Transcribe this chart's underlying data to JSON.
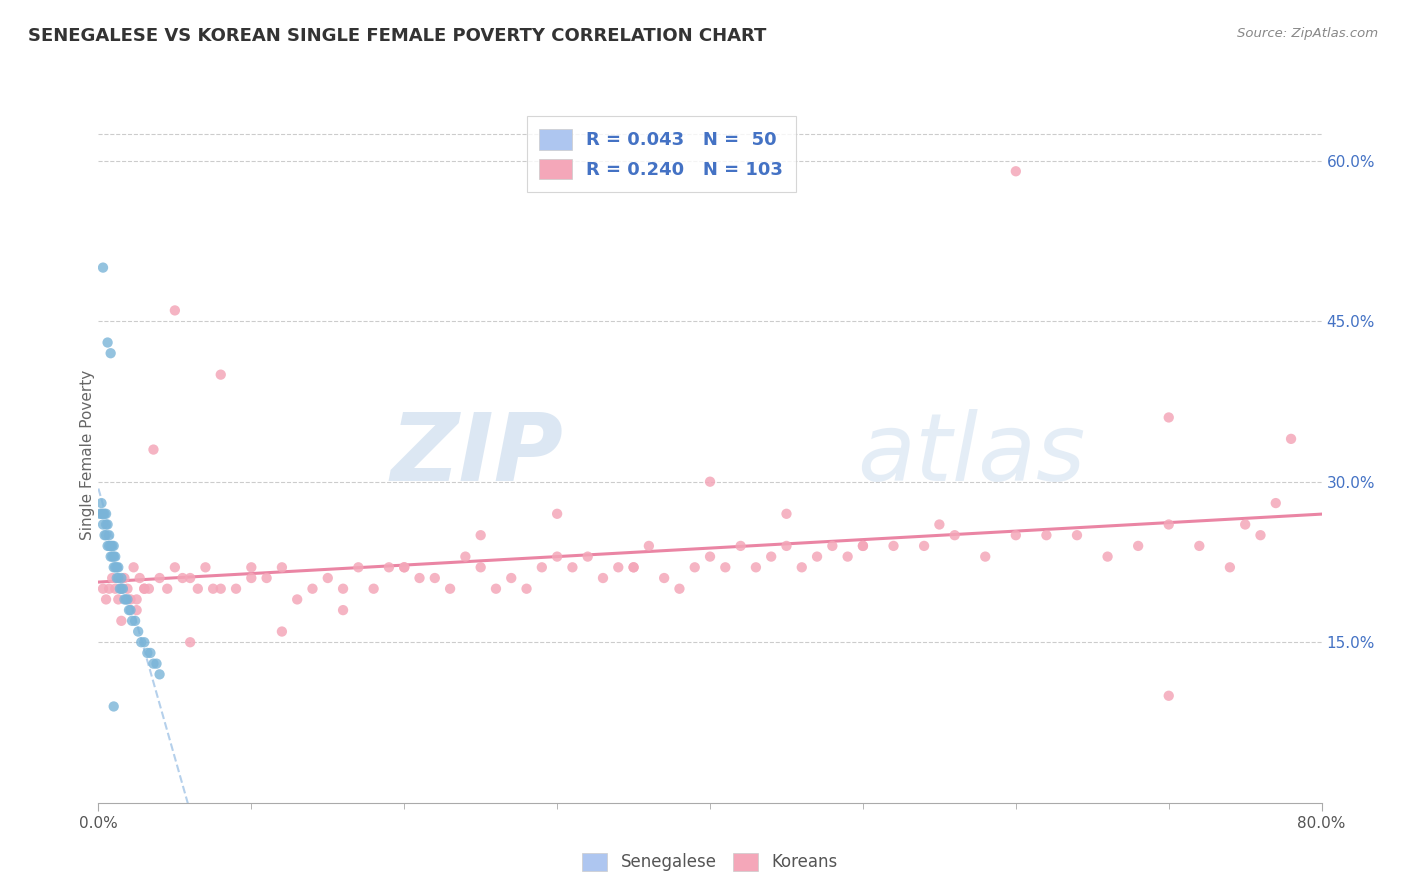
{
  "title": "SENEGALESE VS KOREAN SINGLE FEMALE POVERTY CORRELATION CHART",
  "source_text": "Source: ZipAtlas.com",
  "ylabel": "Single Female Poverty",
  "ytick_labels_right": [
    "15.0%",
    "30.0%",
    "45.0%",
    "60.0%"
  ],
  "ytick_values_right": [
    0.15,
    0.3,
    0.45,
    0.6
  ],
  "xlim": [
    0.0,
    0.8
  ],
  "ylim": [
    0.0,
    0.65
  ],
  "legend_entries": [
    {
      "label": "R = 0.043   N =  50",
      "color": "#aec6f0"
    },
    {
      "label": "R = 0.240   N = 103",
      "color": "#f4a7b9"
    }
  ],
  "bottom_legend": [
    "Senegalese",
    "Koreans"
  ],
  "watermark_zip": "ZIP",
  "watermark_atlas": "atlas",
  "senegalese_color": "#7ab4d8",
  "korean_color": "#f4a7b9",
  "senegalese_line_color": "#a8c8e8",
  "korean_line_color": "#e8789a",
  "background_color": "#ffffff",
  "title_color": "#333333",
  "axis_label_color": "#666666",
  "legend_text_color": "#4472c4",
  "senegalese_scatter_x": [
    0.001,
    0.002,
    0.002,
    0.003,
    0.003,
    0.004,
    0.004,
    0.005,
    0.005,
    0.005,
    0.006,
    0.006,
    0.007,
    0.007,
    0.008,
    0.008,
    0.009,
    0.009,
    0.01,
    0.01,
    0.01,
    0.011,
    0.011,
    0.012,
    0.012,
    0.013,
    0.013,
    0.014,
    0.015,
    0.015,
    0.016,
    0.017,
    0.018,
    0.019,
    0.02,
    0.021,
    0.022,
    0.024,
    0.026,
    0.028,
    0.03,
    0.032,
    0.034,
    0.036,
    0.038,
    0.04,
    0.003,
    0.006,
    0.008,
    0.01
  ],
  "senegalese_scatter_y": [
    0.27,
    0.27,
    0.28,
    0.27,
    0.26,
    0.27,
    0.25,
    0.26,
    0.25,
    0.27,
    0.24,
    0.26,
    0.24,
    0.25,
    0.24,
    0.23,
    0.23,
    0.24,
    0.22,
    0.23,
    0.24,
    0.22,
    0.23,
    0.21,
    0.22,
    0.21,
    0.22,
    0.2,
    0.2,
    0.21,
    0.2,
    0.19,
    0.19,
    0.19,
    0.18,
    0.18,
    0.17,
    0.17,
    0.16,
    0.15,
    0.15,
    0.14,
    0.14,
    0.13,
    0.13,
    0.12,
    0.5,
    0.43,
    0.42,
    0.09
  ],
  "korean_scatter_x": [
    0.003,
    0.005,
    0.007,
    0.009,
    0.011,
    0.013,
    0.015,
    0.017,
    0.019,
    0.021,
    0.023,
    0.025,
    0.027,
    0.03,
    0.033,
    0.036,
    0.04,
    0.045,
    0.05,
    0.055,
    0.06,
    0.065,
    0.07,
    0.075,
    0.08,
    0.09,
    0.1,
    0.11,
    0.12,
    0.13,
    0.14,
    0.15,
    0.16,
    0.17,
    0.18,
    0.19,
    0.2,
    0.21,
    0.22,
    0.23,
    0.24,
    0.25,
    0.26,
    0.27,
    0.28,
    0.29,
    0.3,
    0.31,
    0.32,
    0.33,
    0.34,
    0.35,
    0.36,
    0.37,
    0.38,
    0.39,
    0.4,
    0.41,
    0.42,
    0.43,
    0.44,
    0.45,
    0.46,
    0.47,
    0.48,
    0.49,
    0.5,
    0.52,
    0.54,
    0.56,
    0.58,
    0.6,
    0.62,
    0.64,
    0.66,
    0.68,
    0.7,
    0.72,
    0.74,
    0.76,
    0.015,
    0.03,
    0.05,
    0.08,
    0.12,
    0.2,
    0.3,
    0.4,
    0.5,
    0.6,
    0.7,
    0.025,
    0.06,
    0.1,
    0.16,
    0.25,
    0.35,
    0.45,
    0.55,
    0.7,
    0.75,
    0.77,
    0.78
  ],
  "korean_scatter_y": [
    0.2,
    0.19,
    0.2,
    0.21,
    0.2,
    0.19,
    0.2,
    0.21,
    0.2,
    0.19,
    0.22,
    0.19,
    0.21,
    0.2,
    0.2,
    0.33,
    0.21,
    0.2,
    0.22,
    0.21,
    0.21,
    0.2,
    0.22,
    0.2,
    0.2,
    0.2,
    0.22,
    0.21,
    0.22,
    0.19,
    0.2,
    0.21,
    0.2,
    0.22,
    0.2,
    0.22,
    0.22,
    0.21,
    0.21,
    0.2,
    0.23,
    0.22,
    0.2,
    0.21,
    0.2,
    0.22,
    0.23,
    0.22,
    0.23,
    0.21,
    0.22,
    0.22,
    0.24,
    0.21,
    0.2,
    0.22,
    0.23,
    0.22,
    0.24,
    0.22,
    0.23,
    0.24,
    0.22,
    0.23,
    0.24,
    0.23,
    0.24,
    0.24,
    0.24,
    0.25,
    0.23,
    0.25,
    0.25,
    0.25,
    0.23,
    0.24,
    0.26,
    0.24,
    0.22,
    0.25,
    0.17,
    0.2,
    0.46,
    0.4,
    0.16,
    0.22,
    0.27,
    0.3,
    0.24,
    0.59,
    0.36,
    0.18,
    0.15,
    0.21,
    0.18,
    0.25,
    0.22,
    0.27,
    0.26,
    0.1,
    0.26,
    0.28,
    0.34
  ]
}
